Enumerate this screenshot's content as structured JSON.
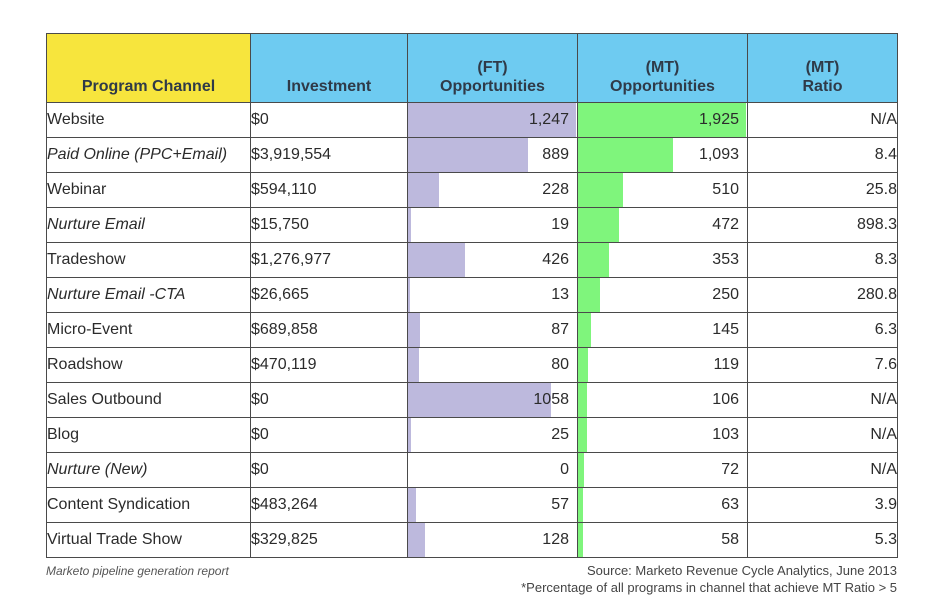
{
  "table": {
    "headers": {
      "channel": "Program Channel",
      "investment": "Investment",
      "ft_line1": "(FT)",
      "ft_line2": "Opportunities",
      "mt_line1": "(MT)",
      "mt_line2": "Opportunities",
      "ratio_line1": "(MT)",
      "ratio_line2": "Ratio"
    },
    "colors": {
      "channel_header": "#f7e53d",
      "other_header": "#6ecbf1",
      "ft_bar": "#bdb9dd",
      "mt_bar": "#7ff57c"
    },
    "ft_bar_max": 1247,
    "mt_bar_max": 1925,
    "rows": [
      {
        "channel": "Website",
        "italic": false,
        "investment": "$0",
        "ft": "1,247",
        "ft_value": 1247,
        "mt": "1,925",
        "mt_value": 1925,
        "ratio": "N/A"
      },
      {
        "channel": "Paid Online (PPC+Email)",
        "italic": true,
        "investment": "$3,919,554",
        "ft": "889",
        "ft_value": 889,
        "mt": "1,093",
        "mt_value": 1093,
        "ratio": "8.4"
      },
      {
        "channel": "Webinar",
        "italic": false,
        "investment": "$594,110",
        "ft": "228",
        "ft_value": 228,
        "mt": "510",
        "mt_value": 510,
        "ratio": "25.8"
      },
      {
        "channel": "Nurture Email",
        "italic": true,
        "investment": "$15,750",
        "ft": "19",
        "ft_value": 19,
        "mt": "472",
        "mt_value": 472,
        "ratio": "898.3"
      },
      {
        "channel": "Tradeshow",
        "italic": false,
        "investment": "$1,276,977",
        "ft": "426",
        "ft_value": 426,
        "mt": "353",
        "mt_value": 353,
        "ratio": "8.3"
      },
      {
        "channel": "Nurture Email -CTA",
        "italic": true,
        "investment": "$26,665",
        "ft": "13",
        "ft_value": 13,
        "mt": "250",
        "mt_value": 250,
        "ratio": "280.8"
      },
      {
        "channel": "Micro-Event",
        "italic": false,
        "investment": "$689,858",
        "ft": "87",
        "ft_value": 87,
        "mt": "145",
        "mt_value": 145,
        "ratio": "6.3"
      },
      {
        "channel": "Roadshow",
        "italic": false,
        "investment": "$470,119",
        "ft": "80",
        "ft_value": 80,
        "mt": "119",
        "mt_value": 119,
        "ratio": "7.6"
      },
      {
        "channel": "Sales Outbound",
        "italic": false,
        "investment": "$0",
        "ft": "1058",
        "ft_value": 1058,
        "mt": "106",
        "mt_value": 106,
        "ratio": "N/A"
      },
      {
        "channel": "Blog",
        "italic": false,
        "investment": "$0",
        "ft": "25",
        "ft_value": 25,
        "mt": "103",
        "mt_value": 103,
        "ratio": "N/A"
      },
      {
        "channel": "Nurture (New)",
        "italic": true,
        "investment": "$0",
        "ft": "0",
        "ft_value": 0,
        "mt": "72",
        "mt_value": 72,
        "ratio": "N/A"
      },
      {
        "channel": "Content Syndication",
        "italic": false,
        "investment": "$483,264",
        "ft": "57",
        "ft_value": 57,
        "mt": "63",
        "mt_value": 63,
        "ratio": "3.9"
      },
      {
        "channel": "Virtual Trade Show",
        "italic": false,
        "investment": "$329,825",
        "ft": "128",
        "ft_value": 128,
        "mt": "58",
        "mt_value": 58,
        "ratio": "5.3"
      }
    ]
  },
  "footer": {
    "caption": "Marketo pipeline generation report",
    "source": "Source: Marketo Revenue Cycle Analytics, June 2013",
    "note": "*Percentage of all programs in channel that achieve MT Ratio > 5"
  }
}
